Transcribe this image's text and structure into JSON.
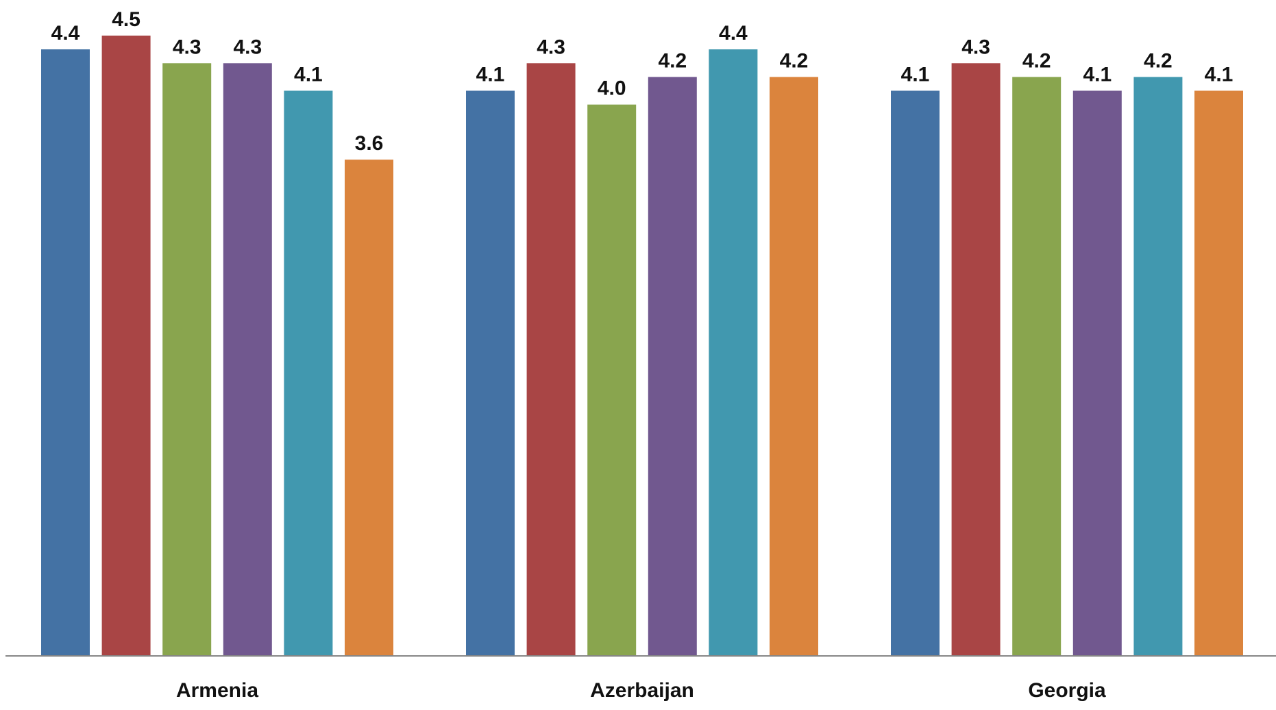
{
  "chart_data": {
    "type": "bar",
    "categories": [
      "Armenia",
      "Azerbaijan",
      "Georgia"
    ],
    "series": [
      {
        "color": "#4472A4",
        "values": [
          4.4,
          4.1,
          4.1
        ]
      },
      {
        "color": "#A94545",
        "values": [
          4.5,
          4.3,
          4.3
        ]
      },
      {
        "color": "#89A54E",
        "values": [
          4.3,
          4.0,
          4.2
        ]
      },
      {
        "color": "#71588F",
        "values": [
          4.3,
          4.2,
          4.1
        ]
      },
      {
        "color": "#4198AF",
        "values": [
          4.1,
          4.4,
          4.2
        ]
      },
      {
        "color": "#DB843D",
        "values": [
          3.6,
          4.2,
          4.1
        ]
      }
    ],
    "data_labels": [
      [
        "4.4",
        "4.1",
        "4.1"
      ],
      [
        "4.5",
        "4.3",
        "4.3"
      ],
      [
        "4.3",
        "4.0",
        "4.2"
      ],
      [
        "4.3",
        "4.2",
        "4.1"
      ],
      [
        "4.1",
        "4.4",
        "4.2"
      ],
      [
        "3.6",
        "4.2",
        "4.1"
      ]
    ],
    "ylim": [
      0,
      4.5
    ],
    "grid": false,
    "legend": "none"
  }
}
